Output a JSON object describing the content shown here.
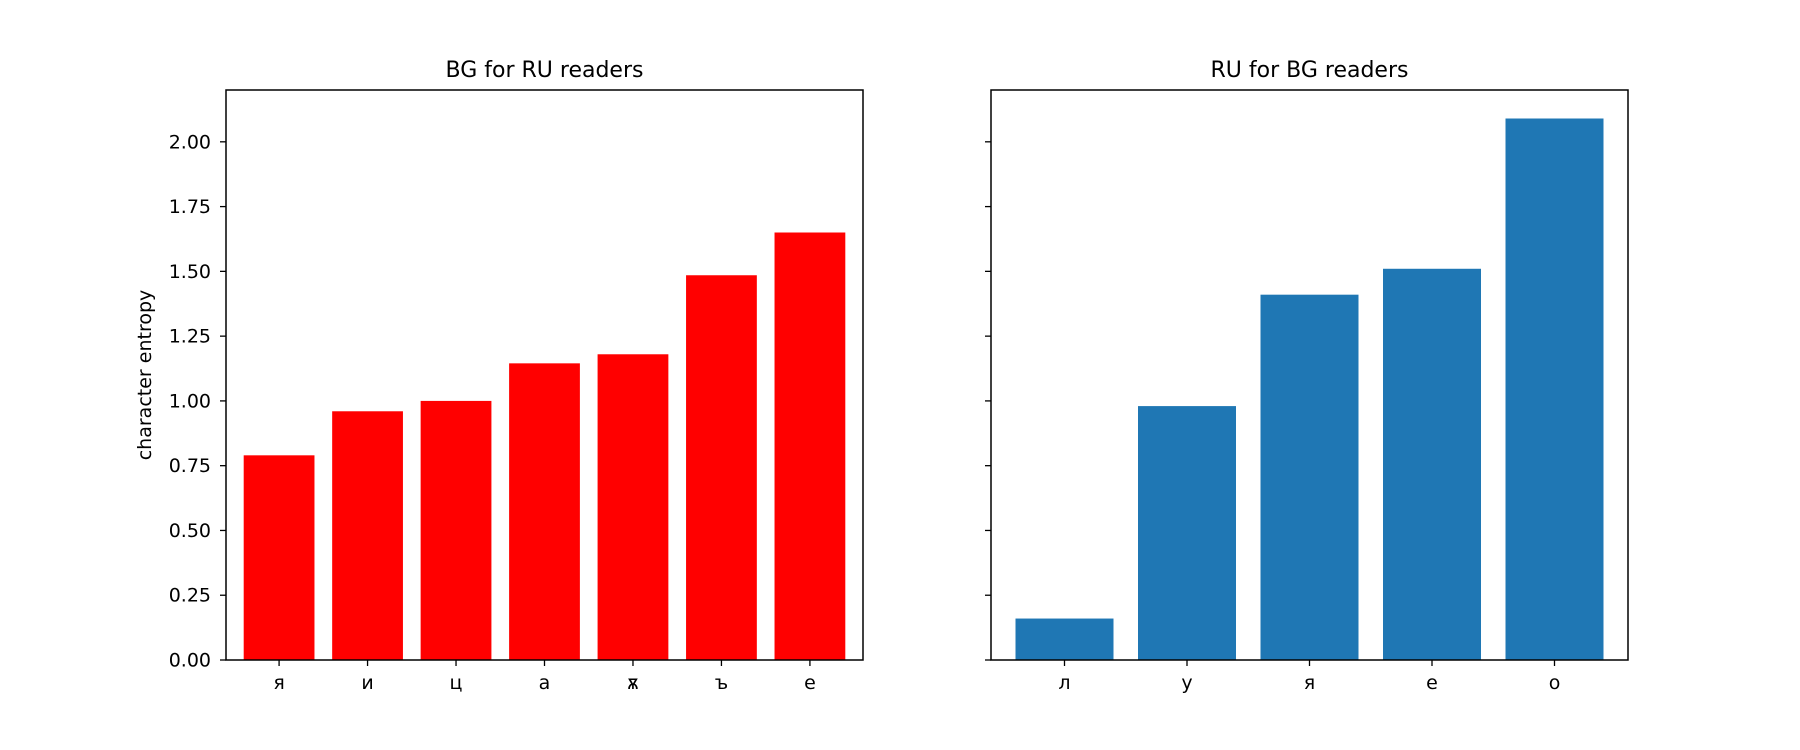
{
  "chart_data": [
    {
      "type": "bar",
      "title": "BG for RU readers",
      "xlabel": "",
      "ylabel": "character entropy",
      "categories": [
        "я",
        "и",
        "ц",
        "а",
        "ѫ",
        "ъ",
        "е"
      ],
      "values": [
        0.79,
        0.96,
        1.0,
        1.145,
        1.18,
        1.485,
        1.65
      ],
      "color": "#ff0000",
      "ylim": [
        0,
        2.2
      ],
      "yticks": [
        "0.00",
        "0.25",
        "0.50",
        "0.75",
        "1.00",
        "1.25",
        "1.50",
        "1.75",
        "2.00"
      ],
      "grid": false
    },
    {
      "type": "bar",
      "title": "RU for BG readers",
      "xlabel": "",
      "ylabel": "",
      "categories": [
        "л",
        "у",
        "я",
        "е",
        "о"
      ],
      "values": [
        0.16,
        0.98,
        1.41,
        1.51,
        2.09
      ],
      "color": "#1f77b4",
      "ylim": [
        0,
        2.2
      ],
      "yticks": [
        "",
        "",
        "",
        "",
        "",
        "",
        "",
        "",
        ""
      ],
      "grid": false
    }
  ]
}
